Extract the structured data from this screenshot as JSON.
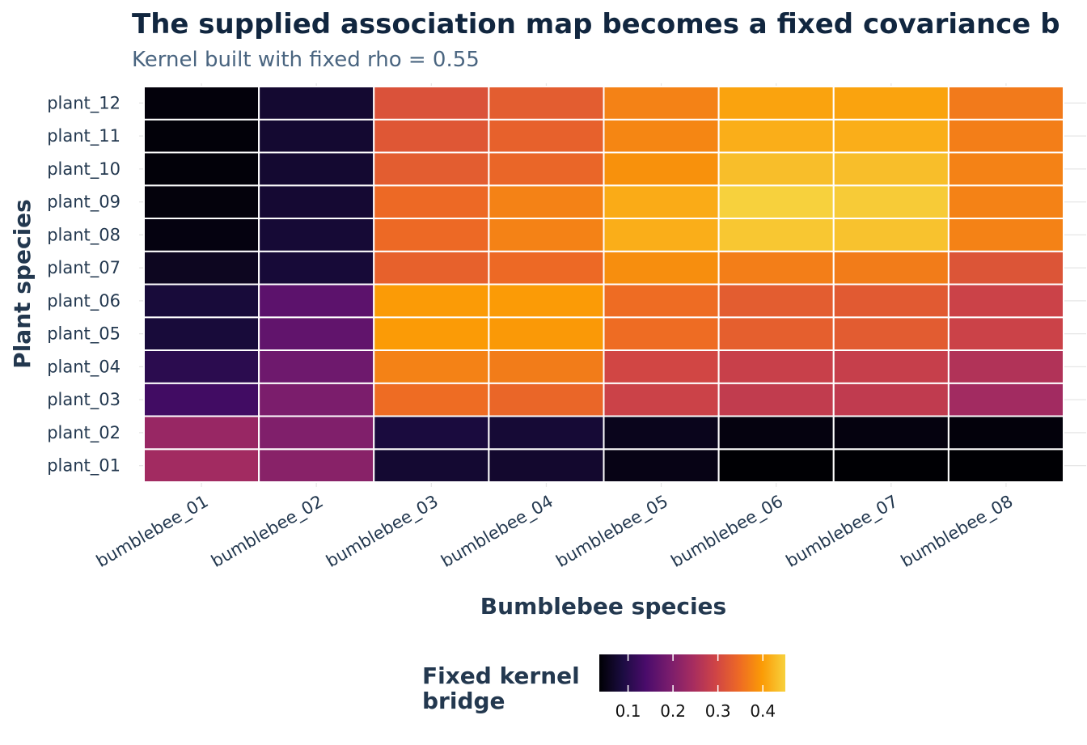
{
  "chart_data": {
    "type": "heatmap",
    "title": "The supplied association map becomes a fixed covariance b",
    "subtitle": "Kernel built with fixed rho = 0.55",
    "xlabel": "Bumblebee species",
    "ylabel": "Plant species",
    "x_categories": [
      "bumblebee_01",
      "bumblebee_02",
      "bumblebee_03",
      "bumblebee_04",
      "bumblebee_05",
      "bumblebee_06",
      "bumblebee_07",
      "bumblebee_08"
    ],
    "y_categories": [
      "plant_01",
      "plant_02",
      "plant_03",
      "plant_04",
      "plant_05",
      "plant_06",
      "plant_07",
      "plant_08",
      "plant_09",
      "plant_10",
      "plant_11",
      "plant_12"
    ],
    "values": [
      [
        0.24,
        0.21,
        0.075,
        0.072,
        0.05,
        0.036,
        0.036,
        0.036
      ],
      [
        0.228,
        0.2,
        0.085,
        0.078,
        0.056,
        0.045,
        0.045,
        0.042
      ],
      [
        0.13,
        0.195,
        0.35,
        0.342,
        0.29,
        0.278,
        0.276,
        0.24
      ],
      [
        0.105,
        0.18,
        0.372,
        0.366,
        0.298,
        0.286,
        0.284,
        0.258
      ],
      [
        0.082,
        0.165,
        0.398,
        0.396,
        0.35,
        0.332,
        0.328,
        0.29
      ],
      [
        0.082,
        0.16,
        0.398,
        0.398,
        0.35,
        0.33,
        0.326,
        0.29
      ],
      [
        0.06,
        0.08,
        0.336,
        0.346,
        0.385,
        0.368,
        0.366,
        0.318
      ],
      [
        0.046,
        0.078,
        0.346,
        0.372,
        0.416,
        0.44,
        0.436,
        0.372
      ],
      [
        0.043,
        0.076,
        0.346,
        0.372,
        0.414,
        0.45,
        0.444,
        0.372
      ],
      [
        0.04,
        0.074,
        0.33,
        0.342,
        0.388,
        0.432,
        0.432,
        0.372
      ],
      [
        0.04,
        0.074,
        0.322,
        0.336,
        0.376,
        0.416,
        0.416,
        0.368
      ],
      [
        0.042,
        0.074,
        0.314,
        0.33,
        0.372,
        0.406,
        0.406,
        0.364
      ]
    ],
    "value_range": [
      0.036,
      0.45
    ],
    "colormap": "inferno",
    "colormap_stops": [
      "#000004",
      "#1b0c41",
      "#4a0c6b",
      "#781c6d",
      "#a52c60",
      "#cf4446",
      "#ed6925",
      "#fb9b06",
      "#f7d13d"
    ],
    "grid": true,
    "legend": {
      "title": "Fixed kernel bridge",
      "title_lines": [
        "Fixed kernel",
        "bridge"
      ],
      "position": "bottom",
      "ticks": [
        0.1,
        0.2,
        0.3,
        0.4
      ],
      "tick_labels": [
        "0.1",
        "0.2",
        "0.3",
        "0.4"
      ]
    }
  }
}
